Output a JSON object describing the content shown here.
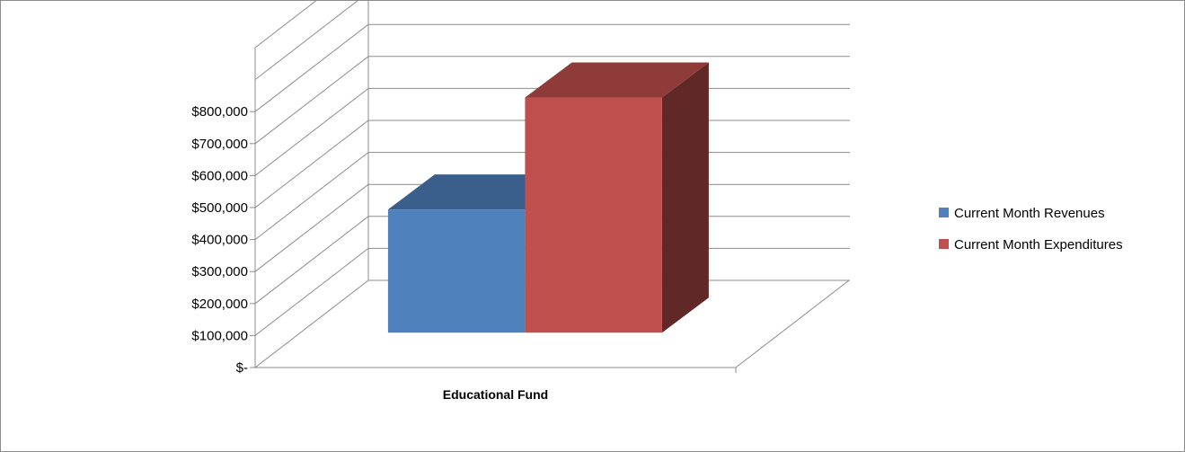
{
  "chart_data": {
    "type": "bar",
    "categories": [
      "Educational Fund"
    ],
    "series": [
      {
        "name": "Current Month Revenues",
        "values": [
          385000
        ],
        "color": "#4F81BD"
      },
      {
        "name": "Current Month Expenditures",
        "values": [
          735000
        ],
        "color": "#C0504D"
      }
    ],
    "y_ticks": [
      {
        "value": 0,
        "label": "$-"
      },
      {
        "value": 100000,
        "label": "$100,000"
      },
      {
        "value": 200000,
        "label": "$200,000"
      },
      {
        "value": 300000,
        "label": "$300,000"
      },
      {
        "value": 400000,
        "label": "$400,000"
      },
      {
        "value": 500000,
        "label": "$500,000"
      },
      {
        "value": 600000,
        "label": "$600,000"
      },
      {
        "value": 700000,
        "label": "$700,000"
      },
      {
        "value": 800000,
        "label": "$800,000"
      }
    ],
    "ylim": [
      0,
      1000000
    ],
    "grid": true,
    "legend_position": "right",
    "style": "3d-clustered-column"
  }
}
